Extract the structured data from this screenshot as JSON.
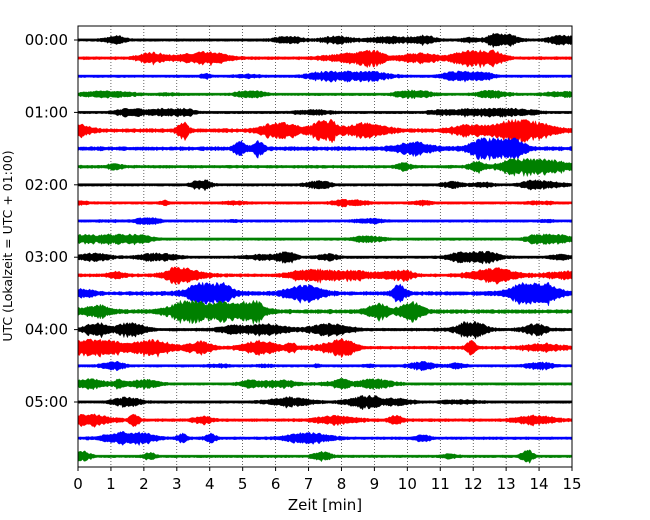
{
  "chart_data": {
    "type": "line",
    "xlabel": "Zeit  [min]",
    "ylabel": "UTC (Lokalzeit = UTC + 01:00)",
    "xlim": [
      0,
      15
    ],
    "x_ticks": [
      "0",
      "1",
      "2",
      "3",
      "4",
      "5",
      "6",
      "7",
      "8",
      "9",
      "10",
      "11",
      "12",
      "13",
      "14",
      "15"
    ],
    "y_tick_labels": [
      "00:00",
      "01:00",
      "02:00",
      "03:00",
      "04:00",
      "05:00"
    ],
    "trace_interval_minutes": 15,
    "trace_count": 24,
    "grid": "vertical dotted at each minute",
    "colors": [
      "#000000",
      "#ff0000",
      "#0000ff",
      "#008000"
    ],
    "traces": [
      {
        "start": "00:00",
        "color": "#000000",
        "amplitude": 0.45
      },
      {
        "start": "00:15",
        "color": "#ff0000",
        "amplitude": 0.55
      },
      {
        "start": "00:30",
        "color": "#0000ff",
        "amplitude": 0.35
      },
      {
        "start": "00:45",
        "color": "#008000",
        "amplitude": 0.3
      },
      {
        "start": "01:00",
        "color": "#000000",
        "amplitude": 0.3
      },
      {
        "start": "01:15",
        "color": "#ff0000",
        "amplitude": 0.75
      },
      {
        "start": "01:30",
        "color": "#0000ff",
        "amplitude": 0.75
      },
      {
        "start": "01:45",
        "color": "#008000",
        "amplitude": 0.55
      },
      {
        "start": "02:00",
        "color": "#000000",
        "amplitude": 0.35
      },
      {
        "start": "02:15",
        "color": "#ff0000",
        "amplitude": 0.25
      },
      {
        "start": "02:30",
        "color": "#0000ff",
        "amplitude": 0.25
      },
      {
        "start": "02:45",
        "color": "#008000",
        "amplitude": 0.35
      },
      {
        "start": "03:00",
        "color": "#000000",
        "amplitude": 0.4
      },
      {
        "start": "03:15",
        "color": "#ff0000",
        "amplitude": 0.6
      },
      {
        "start": "03:30",
        "color": "#0000ff",
        "amplitude": 0.75
      },
      {
        "start": "03:45",
        "color": "#008000",
        "amplitude": 0.75
      },
      {
        "start": "04:00",
        "color": "#000000",
        "amplitude": 0.55
      },
      {
        "start": "04:15",
        "color": "#ff0000",
        "amplitude": 0.6
      },
      {
        "start": "04:30",
        "color": "#0000ff",
        "amplitude": 0.3
      },
      {
        "start": "04:45",
        "color": "#008000",
        "amplitude": 0.4
      },
      {
        "start": "05:00",
        "color": "#000000",
        "amplitude": 0.45
      },
      {
        "start": "05:15",
        "color": "#ff0000",
        "amplitude": 0.55
      },
      {
        "start": "05:30",
        "color": "#0000ff",
        "amplitude": 0.5
      },
      {
        "start": "05:45",
        "color": "#008000",
        "amplitude": 0.45
      }
    ]
  }
}
